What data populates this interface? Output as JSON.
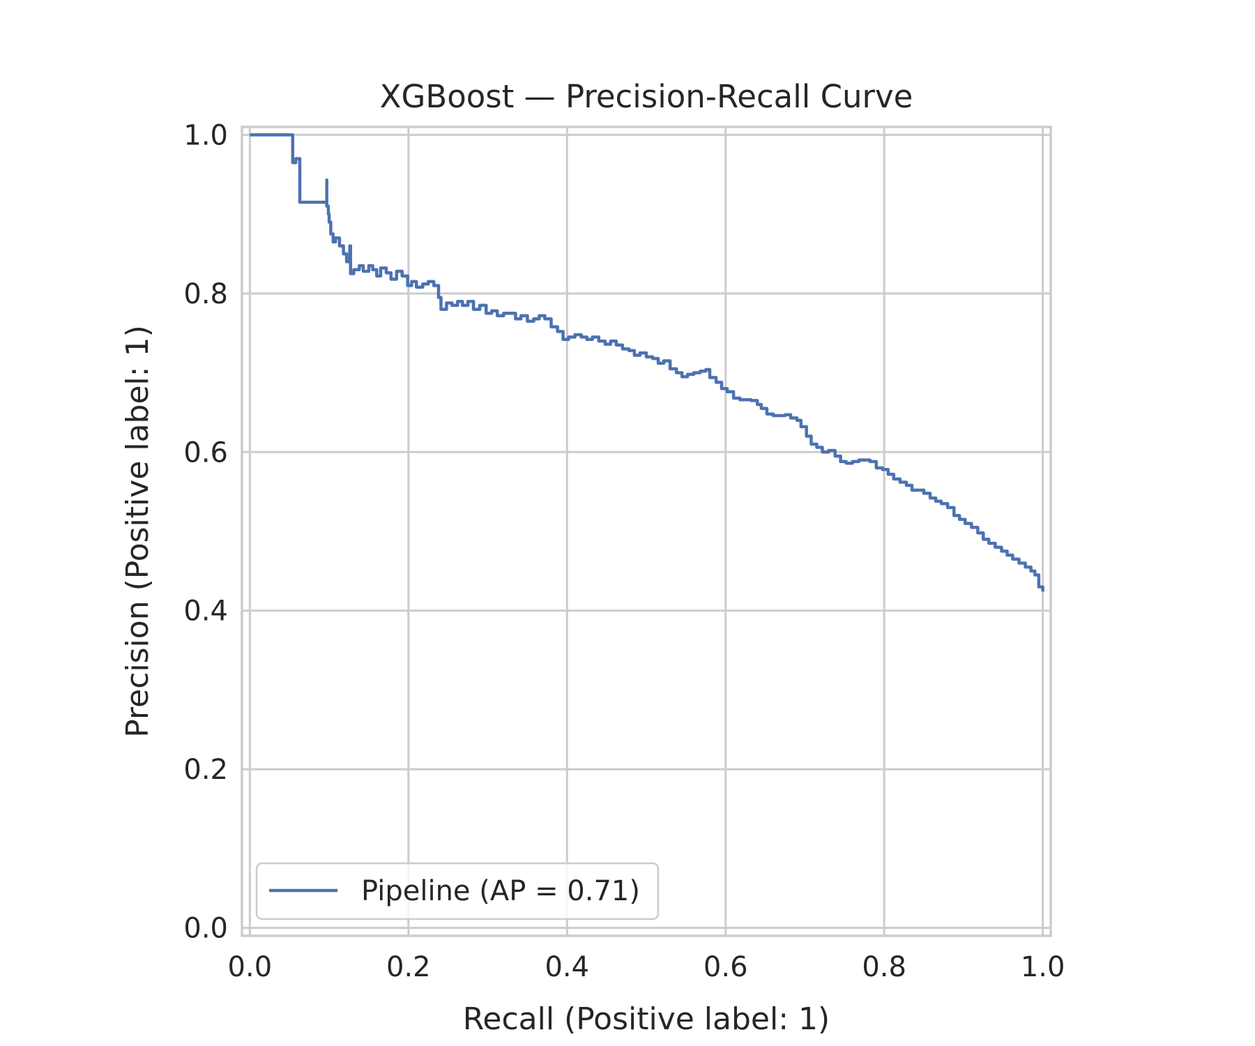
{
  "chart_data": {
    "type": "line",
    "title": "XGBoost — Precision-Recall Curve",
    "xlabel": "Recall (Positive label: 1)",
    "ylabel": "Precision (Positive label: 1)",
    "xlim": [
      -0.01,
      1.01
    ],
    "ylim": [
      -0.01,
      1.01
    ],
    "xticks": [
      "0.0",
      "0.2",
      "0.4",
      "0.6",
      "0.8",
      "1.0"
    ],
    "yticks": [
      "0.0",
      "0.2",
      "0.4",
      "0.6",
      "0.8",
      "1.0"
    ],
    "grid": true,
    "legend": {
      "placement": "lower-left",
      "entries": [
        "Pipeline (AP = 0.71)"
      ]
    },
    "colors": {
      "series": "#4c72b0",
      "grid": "#cccccc",
      "text": "#262626"
    },
    "series": [
      {
        "name": "Pipeline (AP = 0.71)",
        "step": "post",
        "x": [
          0.0,
          0.054,
          0.054,
          0.058,
          0.063,
          0.063,
          0.097,
          0.097,
          0.099,
          0.1,
          0.102,
          0.105,
          0.108,
          0.113,
          0.118,
          0.122,
          0.126,
          0.127,
          0.131,
          0.138,
          0.143,
          0.15,
          0.155,
          0.16,
          0.165,
          0.172,
          0.178,
          0.185,
          0.192,
          0.199,
          0.204,
          0.21,
          0.218,
          0.225,
          0.232,
          0.238,
          0.241,
          0.248,
          0.255,
          0.262,
          0.268,
          0.275,
          0.282,
          0.29,
          0.298,
          0.305,
          0.312,
          0.32,
          0.328,
          0.335,
          0.342,
          0.35,
          0.358,
          0.365,
          0.372,
          0.38,
          0.388,
          0.395,
          0.402,
          0.41,
          0.418,
          0.425,
          0.432,
          0.44,
          0.448,
          0.455,
          0.462,
          0.47,
          0.478,
          0.485,
          0.492,
          0.5,
          0.508,
          0.515,
          0.522,
          0.53,
          0.538,
          0.545,
          0.552,
          0.56,
          0.568,
          0.575,
          0.58,
          0.588,
          0.595,
          0.602,
          0.61,
          0.618,
          0.625,
          0.632,
          0.64,
          0.645,
          0.652,
          0.66,
          0.668,
          0.675,
          0.682,
          0.69,
          0.695,
          0.702,
          0.708,
          0.715,
          0.722,
          0.73,
          0.738,
          0.745,
          0.752,
          0.76,
          0.768,
          0.775,
          0.782,
          0.79,
          0.798,
          0.805,
          0.812,
          0.82,
          0.828,
          0.835,
          0.842,
          0.85,
          0.858,
          0.865,
          0.872,
          0.88,
          0.888,
          0.895,
          0.902,
          0.91,
          0.918,
          0.925,
          0.932,
          0.94,
          0.948,
          0.955,
          0.962,
          0.97,
          0.978,
          0.985,
          0.99,
          0.995,
          1.0
        ],
        "y": [
          1.0,
          1.0,
          0.965,
          0.97,
          0.97,
          0.915,
          0.943,
          0.91,
          0.9,
          0.89,
          0.875,
          0.865,
          0.87,
          0.86,
          0.85,
          0.84,
          0.86,
          0.825,
          0.83,
          0.835,
          0.828,
          0.835,
          0.83,
          0.822,
          0.832,
          0.826,
          0.818,
          0.828,
          0.822,
          0.81,
          0.815,
          0.808,
          0.812,
          0.815,
          0.81,
          0.795,
          0.78,
          0.788,
          0.785,
          0.79,
          0.785,
          0.79,
          0.78,
          0.785,
          0.775,
          0.778,
          0.772,
          0.775,
          0.775,
          0.768,
          0.772,
          0.765,
          0.768,
          0.772,
          0.768,
          0.758,
          0.752,
          0.742,
          0.745,
          0.748,
          0.745,
          0.742,
          0.745,
          0.74,
          0.736,
          0.74,
          0.735,
          0.73,
          0.728,
          0.722,
          0.725,
          0.72,
          0.718,
          0.712,
          0.715,
          0.705,
          0.7,
          0.695,
          0.698,
          0.7,
          0.702,
          0.704,
          0.694,
          0.688,
          0.68,
          0.676,
          0.668,
          0.666,
          0.666,
          0.665,
          0.66,
          0.655,
          0.648,
          0.646,
          0.646,
          0.647,
          0.643,
          0.64,
          0.632,
          0.62,
          0.61,
          0.606,
          0.6,
          0.602,
          0.595,
          0.588,
          0.586,
          0.588,
          0.59,
          0.59,
          0.588,
          0.58,
          0.578,
          0.572,
          0.566,
          0.562,
          0.558,
          0.552,
          0.552,
          0.548,
          0.542,
          0.538,
          0.535,
          0.53,
          0.52,
          0.515,
          0.51,
          0.505,
          0.498,
          0.49,
          0.485,
          0.48,
          0.475,
          0.47,
          0.465,
          0.46,
          0.455,
          0.45,
          0.445,
          0.43,
          0.424
        ]
      }
    ]
  }
}
